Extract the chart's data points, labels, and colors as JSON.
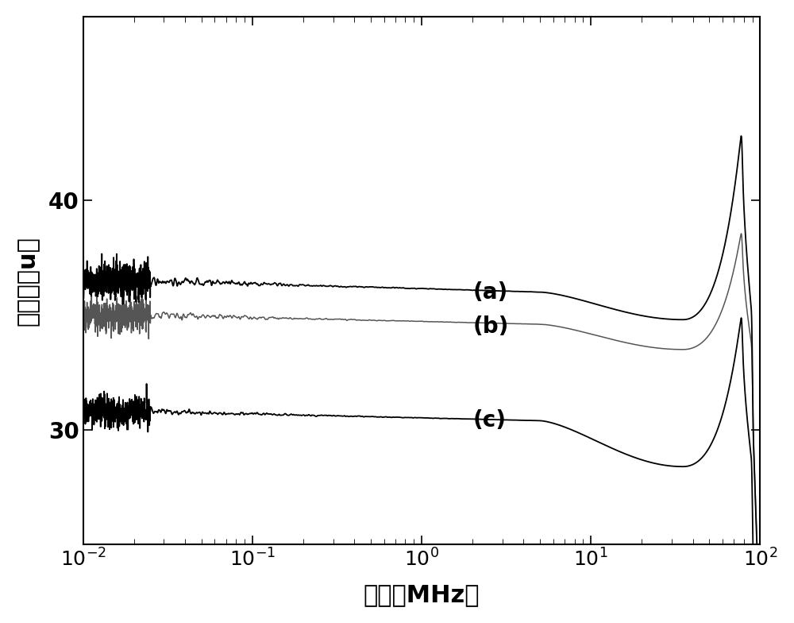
{
  "xlabel": "频率（MHz）",
  "ylabel": "磁导率（u）",
  "background_color": "#ffffff",
  "text_color": "#000000",
  "ylim": [
    25,
    48
  ],
  "yticks": [
    30,
    40
  ],
  "label_a": "(a)",
  "label_b": "(b)",
  "label_c": "(c)",
  "curve_a_color": "#000000",
  "curve_b_color": "#555555",
  "curve_c_color": "#000000",
  "curve_a_init": 36.5,
  "curve_a_flat": 36.0,
  "curve_a_min": 34.8,
  "curve_a_peak": 43.2,
  "curve_b_init": 35.0,
  "curve_b_flat": 34.6,
  "curve_b_min": 33.5,
  "curve_b_peak": 38.8,
  "curve_c_init": 30.8,
  "curve_c_flat": 30.4,
  "curve_c_min": 28.4,
  "curve_c_peak": 35.2
}
